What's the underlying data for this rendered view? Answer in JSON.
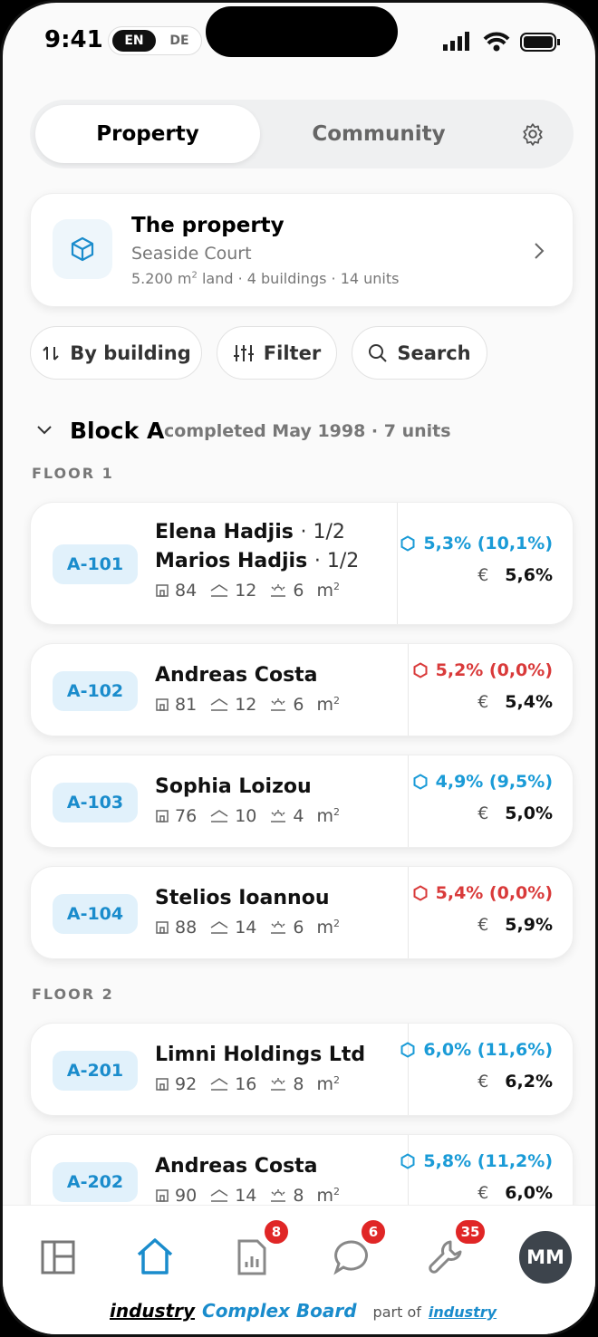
{
  "status_bar": {
    "time": "9:41",
    "languages": [
      "EN",
      "DE"
    ]
  },
  "tabs": [
    "Property",
    "Community"
  ],
  "property_card": {
    "title": "The property",
    "name": "Seaside Court",
    "area": "5.200 m",
    "area_sup": "2",
    "details": " land · 4 buildings · 14 units"
  },
  "toolbar": [
    "By building",
    "Filter",
    "Search"
  ],
  "block": {
    "name": "Block A",
    "info": "completed May 1998 · 7 units"
  },
  "currency": "€",
  "area_unit": "m",
  "area_unit_sup": "2",
  "floors": [
    {
      "label": "FLOOR 1",
      "units": [
        {
          "id": "A-101",
          "owners": [
            {
              "name": "Elena Hadjis",
              "share": "· 1/2"
            },
            {
              "name": "Marios Hadjis",
              "share": "· 1/2"
            }
          ],
          "stats": [
            84,
            12,
            6
          ],
          "ratio": "5,3% (10,1%)",
          "ratio_color": "#1a9bd7",
          "euro": "5,6%"
        },
        {
          "id": "A-102",
          "owners": [
            {
              "name": "Andreas Costa"
            }
          ],
          "stats": [
            81,
            12,
            6
          ],
          "ratio": "5,2% (0,0%)",
          "ratio_color": "#d93a3a",
          "euro": "5,4%"
        },
        {
          "id": "A-103",
          "owners": [
            {
              "name": "Sophia Loizou"
            }
          ],
          "stats": [
            76,
            10,
            4
          ],
          "ratio": "4,9% (9,5%)",
          "ratio_color": "#1a9bd7",
          "euro": "5,0%"
        },
        {
          "id": "A-104",
          "owners": [
            {
              "name": "Stelios Ioannou"
            }
          ],
          "stats": [
            88,
            14,
            6
          ],
          "ratio": "5,4% (0,0%)",
          "ratio_color": "#d93a3a",
          "euro": "5,9%"
        }
      ]
    },
    {
      "label": "FLOOR 2",
      "units": [
        {
          "id": "A-201",
          "owners": [
            {
              "name": "Limni Holdings Ltd"
            }
          ],
          "stats": [
            92,
            16,
            8
          ],
          "ratio": "6,0% (11,6%)",
          "ratio_color": "#1a9bd7",
          "euro": "6,2%"
        },
        {
          "id": "A-202",
          "owners": [
            {
              "name": "Andreas Costa"
            }
          ],
          "stats": [
            90,
            14,
            8
          ],
          "ratio": "5,8% (11,2%)",
          "ratio_color": "#1a9bd7",
          "euro": "6,0%"
        }
      ]
    }
  ],
  "nav": {
    "badges": [
      8,
      6,
      35
    ],
    "avatar": "MM"
  },
  "footer": {
    "brand": "industry",
    "product": "Complex Board",
    "part_of": "part of",
    "parent": "industry"
  }
}
